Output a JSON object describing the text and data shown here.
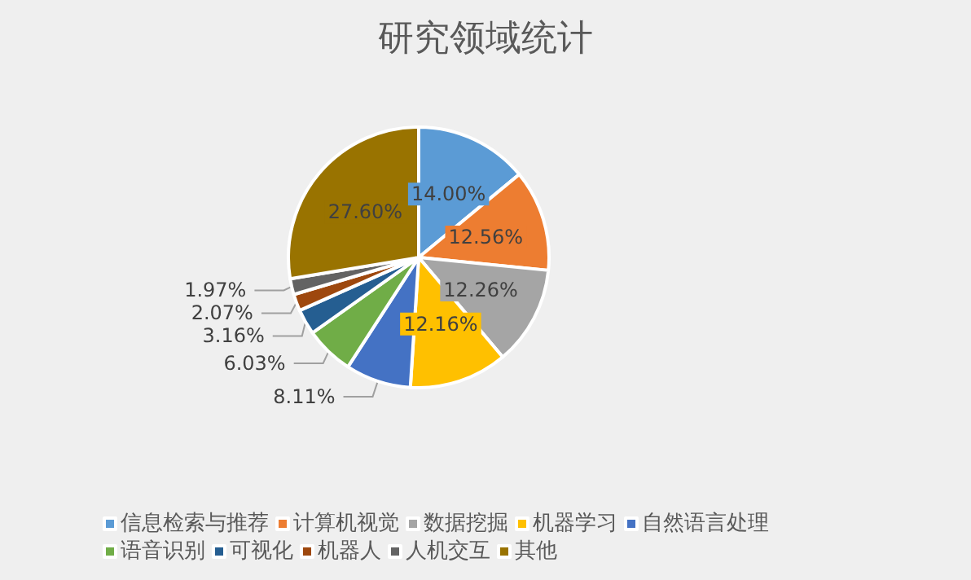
{
  "chart_data": {
    "type": "pie",
    "title": "研究领域统计",
    "categories": [
      "信息检索与推荐",
      "计算机视觉",
      "数据挖掘",
      "机器学习",
      "自然语言处理",
      "语音识别",
      "可视化",
      "机器人",
      "人机交互",
      "其他"
    ],
    "values": [
      14.0,
      12.56,
      12.26,
      12.16,
      8.11,
      6.03,
      3.16,
      2.07,
      1.97,
      27.6
    ],
    "value_labels": [
      "14.00%",
      "12.56%",
      "12.26%",
      "12.16%",
      "8.11%",
      "6.03%",
      "3.16%",
      "2.07%",
      "1.97%",
      "27.60%"
    ],
    "colors": [
      "#5b9bd5",
      "#ed7d31",
      "#a5a5a5",
      "#ffc000",
      "#4472c4",
      "#70ad47",
      "#255e91",
      "#9e480e",
      "#636363",
      "#997300"
    ],
    "legend": "bottom"
  }
}
